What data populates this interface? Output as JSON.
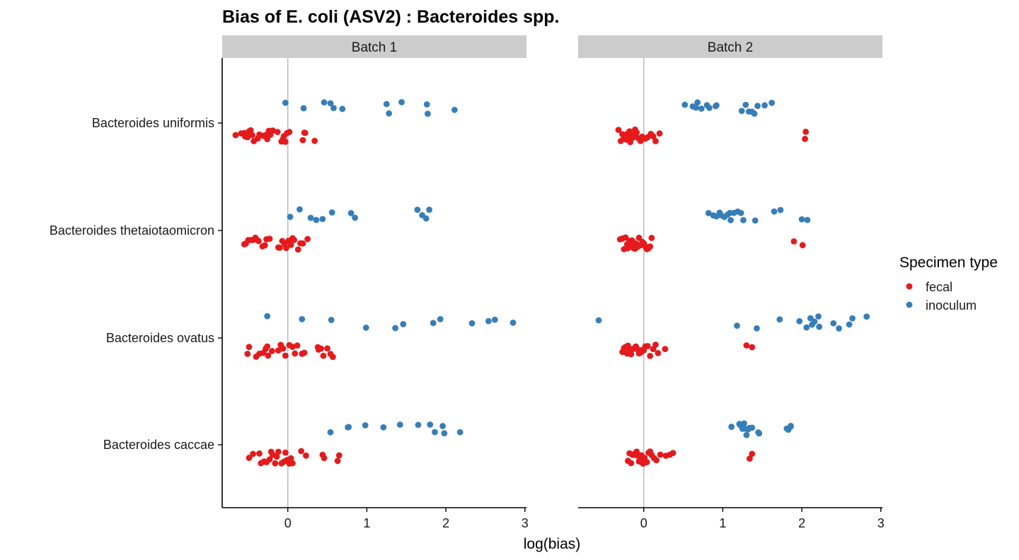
{
  "chart_data": {
    "type": "scatter",
    "title": "Bias of E. coli (ASV2) : Bacteroides spp.",
    "xlabel": "log(bias)",
    "ylabel": "",
    "xlim": [
      -0.83,
      3.02
    ],
    "xticks": [
      "0",
      "1",
      "2",
      "3"
    ],
    "xtick_values": [
      0,
      1,
      2,
      3
    ],
    "reference_line_x": 0,
    "grid": false,
    "categories": [
      "Bacteroides uniformis",
      "Bacteroides thetaiotaomicron",
      "Bacteroides ovatus",
      "Bacteroides caccae"
    ],
    "panels": [
      {
        "label": "Batch 1",
        "series": [
          {
            "name": "fecal",
            "color": "#E41A1C",
            "points": [
              {
                "category": "Bacteroides uniformis",
                "x": [
                  -0.66,
                  -0.59,
                  -0.55,
                  -0.54,
                  -0.51,
                  -0.49,
                  -0.47,
                  -0.45,
                  -0.43,
                  -0.38,
                  -0.36,
                  -0.31,
                  -0.29,
                  -0.28,
                  -0.26,
                  -0.24,
                  -0.22,
                  -0.19,
                  -0.13,
                  -0.08,
                  -0.06,
                  -0.05,
                  -0.03,
                  -0.01,
                  0.02,
                  0.19,
                  0.21,
                  0.22,
                  0.34
                ]
              },
              {
                "category": "Bacteroides thetaiotaomicron",
                "x": [
                  -0.55,
                  -0.53,
                  -0.5,
                  -0.47,
                  -0.44,
                  -0.41,
                  -0.39,
                  -0.37,
                  -0.32,
                  -0.29,
                  -0.27,
                  -0.23,
                  -0.12,
                  -0.1,
                  -0.07,
                  -0.04,
                  -0.02,
                  0.01,
                  0.04,
                  0.06,
                  0.08,
                  0.13,
                  0.16,
                  0.19,
                  0.25
                ]
              },
              {
                "category": "Bacteroides ovatus",
                "x": [
                  -0.51,
                  -0.49,
                  -0.4,
                  -0.36,
                  -0.31,
                  -0.28,
                  -0.26,
                  -0.25,
                  -0.2,
                  -0.12,
                  -0.09,
                  -0.06,
                  -0.03,
                  0.02,
                  0.06,
                  0.09,
                  0.12,
                  0.18,
                  0.21,
                  0.38,
                  0.39,
                  0.42,
                  0.45,
                  0.5,
                  0.54,
                  0.57
                ]
              },
              {
                "category": "Bacteroides caccae",
                "x": [
                  -0.49,
                  -0.44,
                  -0.36,
                  -0.34,
                  -0.3,
                  -0.27,
                  -0.23,
                  -0.21,
                  -0.19,
                  -0.16,
                  -0.14,
                  -0.12,
                  -0.08,
                  -0.05,
                  -0.03,
                  -0.01,
                  0.02,
                  0.04,
                  0.06,
                  0.17,
                  0.23,
                  0.44,
                  0.46,
                  0.63,
                  0.65
                ]
              }
            ]
          },
          {
            "name": "inoculum",
            "color": "#377EB8",
            "points": [
              {
                "category": "Bacteroides uniformis",
                "x": [
                  -0.03,
                  0.2,
                  0.46,
                  0.54,
                  0.58,
                  0.69,
                  1.25,
                  1.28,
                  1.44,
                  1.76,
                  1.77,
                  2.11
                ]
              },
              {
                "category": "Bacteroides thetaiotaomicron",
                "x": [
                  0.03,
                  0.15,
                  0.29,
                  0.36,
                  0.44,
                  0.56,
                  0.8,
                  0.85,
                  1.64,
                  1.7,
                  1.75,
                  1.79
                ]
              },
              {
                "category": "Bacteroides ovatus",
                "x": [
                  -0.26,
                  0.18,
                  0.55,
                  0.99,
                  1.36,
                  1.46,
                  1.84,
                  1.93,
                  2.33,
                  2.54,
                  2.62,
                  2.85
                ]
              },
              {
                "category": "Bacteroides caccae",
                "x": [
                  0.54,
                  0.76,
                  0.77,
                  0.98,
                  1.21,
                  1.42,
                  1.65,
                  1.8,
                  1.86,
                  1.96,
                  1.98,
                  2.18
                ]
              }
            ]
          }
        ]
      },
      {
        "label": "Batch 2",
        "series": [
          {
            "name": "fecal",
            "color": "#E41A1C",
            "points": [
              {
                "category": "Bacteroides uniformis",
                "x": [
                  -0.32,
                  -0.29,
                  -0.27,
                  -0.25,
                  -0.24,
                  -0.22,
                  -0.21,
                  -0.2,
                  -0.19,
                  -0.18,
                  -0.17,
                  -0.16,
                  -0.15,
                  -0.14,
                  -0.12,
                  -0.11,
                  -0.09,
                  -0.07,
                  -0.04,
                  -0.02,
                  0.02,
                  0.05,
                  0.09,
                  0.12,
                  0.15,
                  0.2,
                  2.04,
                  2.05
                ]
              },
              {
                "category": "Bacteroides thetaiotaomicron",
                "x": [
                  -0.3,
                  -0.27,
                  -0.25,
                  -0.23,
                  -0.21,
                  -0.2,
                  -0.18,
                  -0.16,
                  -0.15,
                  -0.14,
                  -0.13,
                  -0.11,
                  -0.1,
                  -0.08,
                  -0.06,
                  -0.04,
                  -0.02,
                  0.0,
                  0.02,
                  0.04,
                  0.06,
                  0.08,
                  0.1,
                  1.9,
                  2.01
                ]
              },
              {
                "category": "Bacteroides ovatus",
                "x": [
                  -0.27,
                  -0.25,
                  -0.23,
                  -0.21,
                  -0.2,
                  -0.18,
                  -0.16,
                  -0.14,
                  -0.12,
                  -0.1,
                  -0.08,
                  -0.06,
                  -0.04,
                  -0.02,
                  0.0,
                  0.02,
                  0.05,
                  0.08,
                  0.12,
                  0.15,
                  0.18,
                  0.27,
                  1.3,
                  1.37
                ]
              },
              {
                "category": "Bacteroides caccae",
                "x": [
                  -0.2,
                  -0.18,
                  -0.16,
                  -0.14,
                  -0.12,
                  -0.1,
                  -0.09,
                  -0.08,
                  -0.06,
                  -0.05,
                  -0.04,
                  -0.03,
                  -0.02,
                  -0.01,
                  0.0,
                  0.01,
                  0.02,
                  0.04,
                  0.06,
                  0.08,
                  0.1,
                  0.13,
                  0.16,
                  0.21,
                  0.28,
                  0.33,
                  0.37,
                  1.34,
                  1.37
                ]
              }
            ]
          },
          {
            "name": "inoculum",
            "color": "#377EB8",
            "points": [
              {
                "category": "Bacteroides uniformis",
                "x": [
                  0.52,
                  0.62,
                  0.66,
                  0.68,
                  0.73,
                  0.8,
                  0.83,
                  0.91,
                  0.92,
                  1.24,
                  1.29,
                  1.33,
                  1.37,
                  1.4,
                  1.44,
                  1.53,
                  1.62
                ]
              },
              {
                "category": "Bacteroides thetaiotaomicron",
                "x": [
                  0.82,
                  0.88,
                  0.92,
                  0.96,
                  0.98,
                  1.02,
                  1.06,
                  1.09,
                  1.1,
                  1.14,
                  1.19,
                  1.23,
                  1.26,
                  1.41,
                  1.65,
                  1.73,
                  2.0,
                  2.07
                ]
              },
              {
                "category": "Bacteroides ovatus",
                "x": [
                  -0.57,
                  1.18,
                  1.43,
                  1.72,
                  1.97,
                  2.06,
                  2.11,
                  2.13,
                  2.16,
                  2.21,
                  2.22,
                  2.4,
                  2.47,
                  2.6,
                  2.64,
                  2.82
                ]
              },
              {
                "category": "Bacteroides caccae",
                "x": [
                  1.11,
                  1.21,
                  1.22,
                  1.25,
                  1.27,
                  1.28,
                  1.3,
                  1.32,
                  1.34,
                  1.37,
                  1.45,
                  1.46,
                  1.81,
                  1.83,
                  1.86,
                  1.86
                ]
              }
            ]
          }
        ]
      }
    ],
    "legend": {
      "title": "Specimen type",
      "position": "right",
      "entries": [
        {
          "label": "fecal",
          "color": "#E41A1C"
        },
        {
          "label": "inoculum",
          "color": "#377EB8"
        }
      ]
    },
    "colors": {
      "strip_background": "#CCCCCC",
      "zero_line": "#BEBEBE",
      "axis_line": "#000000"
    }
  }
}
